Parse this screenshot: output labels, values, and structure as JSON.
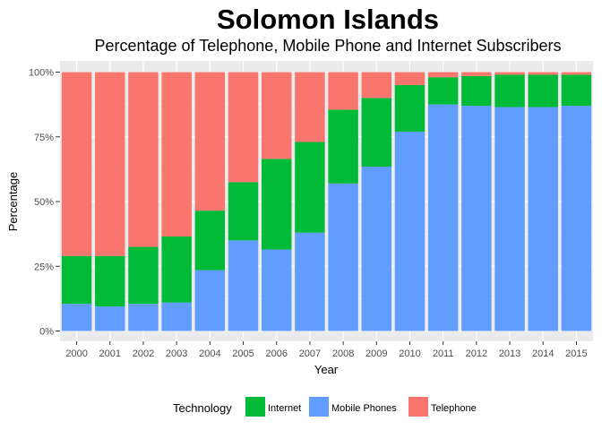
{
  "chart_data": {
    "type": "bar",
    "stacked": true,
    "title": "Solomon Islands",
    "subtitle": "Percentage of Telephone, Mobile Phone and Internet Subscribers",
    "xlabel": "Year",
    "ylabel": "Percentage",
    "ylim": [
      0,
      100
    ],
    "yticks": [
      "0%",
      "25%",
      "50%",
      "75%",
      "100%"
    ],
    "grid": true,
    "legend_position": "bottom",
    "legend_title": "Technology",
    "categories": [
      "2000",
      "2001",
      "2002",
      "2003",
      "2004",
      "2005",
      "2006",
      "2007",
      "2008",
      "2009",
      "2010",
      "2011",
      "2012",
      "2013",
      "2014",
      "2015"
    ],
    "series": [
      {
        "name": "Mobile Phones",
        "color": "#619CFF",
        "values": [
          10.5,
          9.5,
          10.5,
          11,
          23.5,
          35,
          31.5,
          38,
          57,
          63.5,
          77,
          87.5,
          87,
          86.5,
          86.5,
          87
        ]
      },
      {
        "name": "Internet",
        "color": "#00BA38",
        "values": [
          18.5,
          19.5,
          22,
          25.5,
          23,
          22.5,
          35,
          35,
          28.5,
          26.5,
          18,
          10.5,
          11.5,
          12.5,
          12.5,
          12
        ]
      },
      {
        "name": "Telephone",
        "color": "#F8766D",
        "values": [
          71,
          71,
          67.5,
          63.5,
          53.5,
          42.5,
          33.5,
          27,
          14.5,
          10,
          5,
          2,
          1.5,
          1,
          1,
          1
        ]
      }
    ],
    "legend_order": [
      "Internet",
      "Mobile Phones",
      "Telephone"
    ]
  }
}
